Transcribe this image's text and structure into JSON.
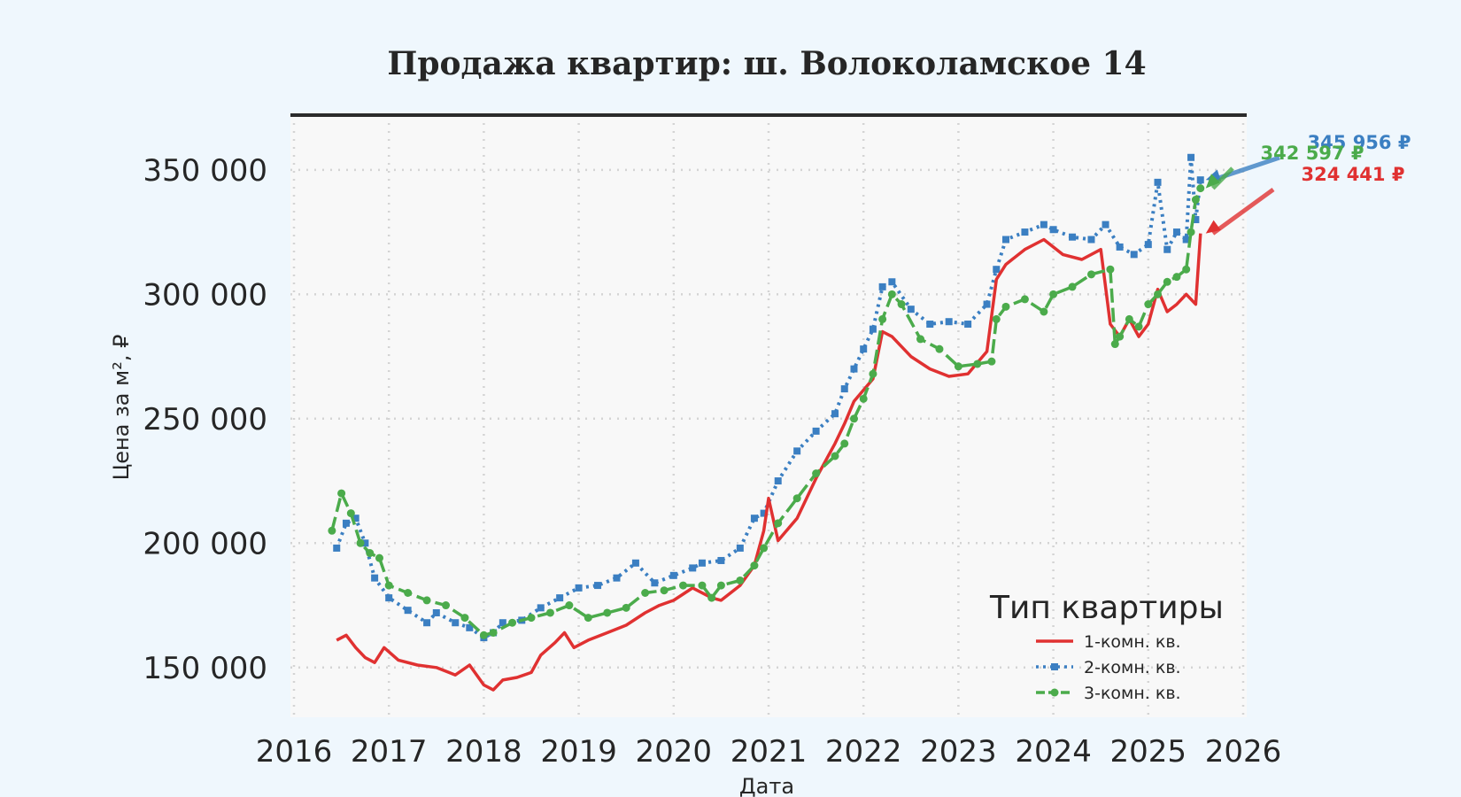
{
  "chart_data": {
    "type": "line",
    "title": "Продажа квартир: ш. Волоколамское 14",
    "xlabel": "Дата",
    "ylabel": "Цена за м², ₽",
    "x_ticks": [
      "2016",
      "2017",
      "2018",
      "2019",
      "2020",
      "2021",
      "2022",
      "2023",
      "2024",
      "2025",
      "2026"
    ],
    "y_ticks": [
      "150 000",
      "200 000",
      "250 000",
      "300 000",
      "350 000"
    ],
    "xlim": [
      2016.0,
      2026.0
    ],
    "ylim": [
      130000,
      372000
    ],
    "grid": true,
    "legend": {
      "title": "Тип квартиры",
      "position": "lower-right"
    },
    "series": [
      {
        "name": "1-комн. кв.",
        "color": "#e03131",
        "style": "solid",
        "x": [
          2016.45,
          2016.55,
          2016.65,
          2016.75,
          2016.85,
          2016.95,
          2017.1,
          2017.3,
          2017.5,
          2017.7,
          2017.85,
          2018.0,
          2018.1,
          2018.2,
          2018.35,
          2018.5,
          2018.6,
          2018.75,
          2018.85,
          2018.95,
          2019.1,
          2019.3,
          2019.5,
          2019.7,
          2019.85,
          2020.0,
          2020.2,
          2020.4,
          2020.5,
          2020.7,
          2020.85,
          2020.95,
          2021.0,
          2021.1,
          2021.3,
          2021.5,
          2021.7,
          2021.8,
          2021.9,
          2022.1,
          2022.2,
          2022.3,
          2022.5,
          2022.7,
          2022.9,
          2023.1,
          2023.3,
          2023.4,
          2023.5,
          2023.7,
          2023.9,
          2024.1,
          2024.3,
          2024.5,
          2024.6,
          2024.7,
          2024.8,
          2024.9,
          2025.0,
          2025.1,
          2025.2,
          2025.3,
          2025.4,
          2025.5,
          2025.55
        ],
        "y": [
          161000,
          163000,
          158000,
          154000,
          152000,
          158000,
          153000,
          151000,
          150000,
          147000,
          151000,
          143000,
          141000,
          145000,
          146000,
          148000,
          155000,
          160000,
          164000,
          158000,
          161000,
          164000,
          167000,
          172000,
          175000,
          177000,
          182000,
          178000,
          177000,
          183000,
          191000,
          205000,
          218000,
          201000,
          210000,
          226000,
          240000,
          248000,
          257000,
          266000,
          285000,
          283000,
          275000,
          270000,
          267000,
          268000,
          277000,
          306000,
          312000,
          318000,
          322000,
          316000,
          314000,
          318000,
          288000,
          283000,
          290000,
          283000,
          288000,
          302000,
          293000,
          296000,
          300000,
          296000,
          324441
        ]
      },
      {
        "name": "2-комн. кв.",
        "color": "#3b7fc2",
        "style": "dotted-square",
        "x": [
          2016.45,
          2016.55,
          2016.65,
          2016.75,
          2016.85,
          2017.0,
          2017.2,
          2017.4,
          2017.5,
          2017.7,
          2017.85,
          2018.0,
          2018.1,
          2018.2,
          2018.4,
          2018.6,
          2018.8,
          2019.0,
          2019.2,
          2019.4,
          2019.6,
          2019.8,
          2020.0,
          2020.2,
          2020.3,
          2020.5,
          2020.7,
          2020.85,
          2020.95,
          2021.1,
          2021.3,
          2021.5,
          2021.7,
          2021.8,
          2021.9,
          2022.0,
          2022.1,
          2022.2,
          2022.3,
          2022.5,
          2022.7,
          2022.9,
          2023.1,
          2023.3,
          2023.4,
          2023.5,
          2023.7,
          2023.9,
          2024.0,
          2024.2,
          2024.4,
          2024.55,
          2024.7,
          2024.85,
          2025.0,
          2025.1,
          2025.2,
          2025.3,
          2025.4,
          2025.45,
          2025.5,
          2025.55
        ],
        "y": [
          198000,
          208000,
          210000,
          200000,
          186000,
          178000,
          173000,
          168000,
          172000,
          168000,
          166000,
          162000,
          164000,
          168000,
          169000,
          174000,
          178000,
          182000,
          183000,
          186000,
          192000,
          184000,
          187000,
          190000,
          192000,
          193000,
          198000,
          210000,
          212000,
          225000,
          237000,
          245000,
          252000,
          262000,
          270000,
          278000,
          286000,
          303000,
          305000,
          294000,
          288000,
          289000,
          288000,
          296000,
          310000,
          322000,
          325000,
          328000,
          326000,
          323000,
          322000,
          328000,
          319000,
          316000,
          320000,
          345000,
          318000,
          325000,
          322000,
          355000,
          330000,
          345956
        ]
      },
      {
        "name": "3-комн. кв.",
        "color": "#4bab4b",
        "style": "dot-line",
        "x": [
          2016.4,
          2016.5,
          2016.6,
          2016.7,
          2016.8,
          2016.9,
          2017.0,
          2017.2,
          2017.4,
          2017.6,
          2017.8,
          2018.0,
          2018.1,
          2018.3,
          2018.5,
          2018.7,
          2018.9,
          2019.1,
          2019.3,
          2019.5,
          2019.7,
          2019.9,
          2020.1,
          2020.3,
          2020.4,
          2020.5,
          2020.7,
          2020.85,
          2020.95,
          2021.1,
          2021.3,
          2021.5,
          2021.7,
          2021.8,
          2021.9,
          2022.0,
          2022.1,
          2022.2,
          2022.3,
          2022.4,
          2022.6,
          2022.8,
          2023.0,
          2023.2,
          2023.35,
          2023.4,
          2023.5,
          2023.7,
          2023.9,
          2024.0,
          2024.2,
          2024.4,
          2024.6,
          2024.65,
          2024.7,
          2024.8,
          2024.9,
          2025.0,
          2025.1,
          2025.2,
          2025.3,
          2025.4,
          2025.45,
          2025.5,
          2025.55
        ],
        "y": [
          205000,
          220000,
          212000,
          200000,
          196000,
          194000,
          183000,
          180000,
          177000,
          175000,
          170000,
          163000,
          164000,
          168000,
          170000,
          172000,
          175000,
          170000,
          172000,
          174000,
          180000,
          181000,
          183000,
          183000,
          178000,
          183000,
          185000,
          191000,
          198000,
          208000,
          218000,
          228000,
          235000,
          240000,
          250000,
          258000,
          268000,
          290000,
          300000,
          296000,
          282000,
          278000,
          271000,
          272000,
          273000,
          290000,
          295000,
          298000,
          293000,
          300000,
          303000,
          308000,
          310000,
          280000,
          283000,
          290000,
          287000,
          296000,
          300000,
          305000,
          307000,
          310000,
          325000,
          338000,
          342597
        ]
      }
    ],
    "annotations": [
      {
        "text": "345 956 ₽",
        "series": "2-комн. кв.",
        "color": "#3b7fc2"
      },
      {
        "text": "342 597 ₽",
        "series": "3-комн. кв.",
        "color": "#4bab4b"
      },
      {
        "text": "324 441 ₽",
        "series": "1-комн. кв.",
        "color": "#e03131"
      }
    ]
  }
}
